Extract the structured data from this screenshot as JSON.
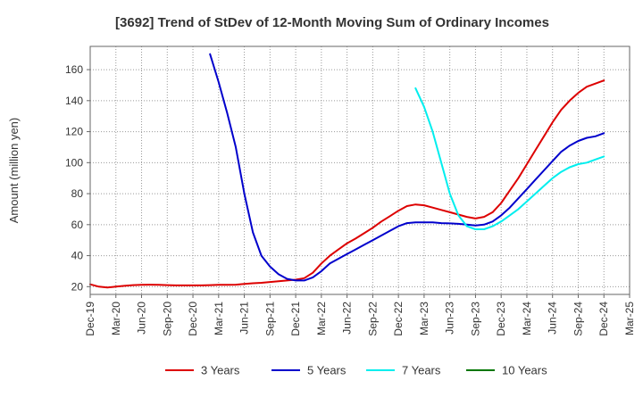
{
  "chart_data": {
    "type": "line",
    "title": "[3692]  Trend of StDev of 12-Month Moving Sum of Ordinary Incomes",
    "xlabel": "",
    "ylabel": "Amount (million yen)",
    "ylim": [
      15,
      175
    ],
    "xlim": [
      "Dec-19",
      "Mar-25"
    ],
    "yticks": [
      20,
      40,
      60,
      80,
      100,
      120,
      140,
      160
    ],
    "x_tick_labels": [
      "Dec-19",
      "Mar-20",
      "Jun-20",
      "Sep-20",
      "Dec-20",
      "Mar-21",
      "Jun-21",
      "Sep-21",
      "Dec-21",
      "Mar-22",
      "Jun-22",
      "Sep-22",
      "Dec-22",
      "Mar-23",
      "Jun-23",
      "Sep-23",
      "Dec-23",
      "Mar-24",
      "Jun-24",
      "Sep-24",
      "Dec-24",
      "Mar-25"
    ],
    "grid": true,
    "legend_position": "bottom",
    "series": [
      {
        "name": "3 Years",
        "color": "#dd0000",
        "x": [
          "Dec-19",
          "Jan-20",
          "Feb-20",
          "Mar-20",
          "Apr-20",
          "May-20",
          "Jun-20",
          "Jul-20",
          "Aug-20",
          "Sep-20",
          "Oct-20",
          "Nov-20",
          "Dec-20",
          "Jan-21",
          "Feb-21",
          "Mar-21",
          "Apr-21",
          "May-21",
          "Jun-21",
          "Jul-21",
          "Aug-21",
          "Sep-21",
          "Oct-21",
          "Nov-21",
          "Dec-21",
          "Jan-22",
          "Feb-22",
          "Mar-22",
          "Apr-22",
          "May-22",
          "Jun-22",
          "Jul-22",
          "Aug-22",
          "Sep-22",
          "Oct-22",
          "Nov-22",
          "Dec-22",
          "Jan-23",
          "Feb-23",
          "Mar-23",
          "Apr-23",
          "May-23",
          "Jun-23",
          "Jul-23",
          "Aug-23",
          "Sep-23",
          "Oct-23",
          "Nov-23",
          "Dec-23",
          "Jan-24",
          "Feb-24",
          "Mar-24",
          "Apr-24",
          "May-24",
          "Jun-24",
          "Jul-24",
          "Aug-24",
          "Sep-24",
          "Oct-24",
          "Nov-24",
          "Dec-24"
        ],
        "values": [
          21.5,
          20,
          19.5,
          20,
          20.5,
          21,
          21.2,
          21.3,
          21.2,
          21,
          20.8,
          20.8,
          20.8,
          20.8,
          21,
          21.2,
          21.2,
          21.3,
          21.8,
          22.2,
          22.5,
          23,
          23.5,
          24,
          24.5,
          25.5,
          29,
          35,
          40,
          44,
          48,
          51,
          54.5,
          58,
          62,
          65.5,
          69,
          72,
          73,
          72.5,
          71,
          69.5,
          68,
          66.5,
          65,
          64,
          65,
          68,
          74,
          82,
          90,
          99,
          108,
          117,
          126,
          134,
          140,
          145,
          149,
          151,
          153
        ]
      },
      {
        "name": "5 Years",
        "color": "#0000cc",
        "x": [
          "Feb-21",
          "Mar-21",
          "Apr-21",
          "May-21",
          "Jun-21",
          "Jul-21",
          "Aug-21",
          "Sep-21",
          "Oct-21",
          "Nov-21",
          "Dec-21",
          "Jan-22",
          "Feb-22",
          "Mar-22",
          "Apr-22",
          "May-22",
          "Jun-22",
          "Jul-22",
          "Aug-22",
          "Sep-22",
          "Oct-22",
          "Nov-22",
          "Dec-22",
          "Jan-23",
          "Feb-23",
          "Mar-23",
          "Apr-23",
          "May-23",
          "Jun-23",
          "Jul-23",
          "Aug-23",
          "Sep-23",
          "Oct-23",
          "Nov-23",
          "Dec-23",
          "Jan-24",
          "Feb-24",
          "Mar-24",
          "Apr-24",
          "May-24",
          "Jun-24",
          "Jul-24",
          "Aug-24",
          "Sep-24",
          "Oct-24",
          "Nov-24",
          "Dec-24"
        ],
        "values": [
          170,
          152,
          132,
          110,
          80,
          55,
          40,
          33,
          28,
          25,
          24,
          24,
          26,
          30,
          35,
          38,
          41,
          44,
          47,
          50,
          53,
          56,
          59,
          61,
          61.5,
          61.5,
          61.5,
          61,
          60.8,
          60.5,
          60,
          59.5,
          60,
          62,
          66,
          71,
          77,
          83,
          89,
          95,
          101,
          107,
          111,
          114,
          116,
          117,
          119
        ]
      },
      {
        "name": "7 Years",
        "color": "#00eeee",
        "x": [
          "Feb-23",
          "Mar-23",
          "Apr-23",
          "May-23",
          "Jun-23",
          "Jul-23",
          "Aug-23",
          "Sep-23",
          "Oct-23",
          "Nov-23",
          "Dec-23",
          "Jan-24",
          "Feb-24",
          "Mar-24",
          "Apr-24",
          "May-24",
          "Jun-24",
          "Jul-24",
          "Aug-24",
          "Sep-24",
          "Oct-24",
          "Nov-24",
          "Dec-24"
        ],
        "values": [
          148,
          136,
          120,
          100,
          80,
          66,
          59,
          57,
          57,
          59,
          62,
          66,
          70,
          75,
          80,
          85,
          90,
          94,
          97,
          99,
          100,
          102,
          104
        ]
      },
      {
        "name": "10 Years",
        "color": "#007700",
        "x": [],
        "values": []
      }
    ]
  }
}
